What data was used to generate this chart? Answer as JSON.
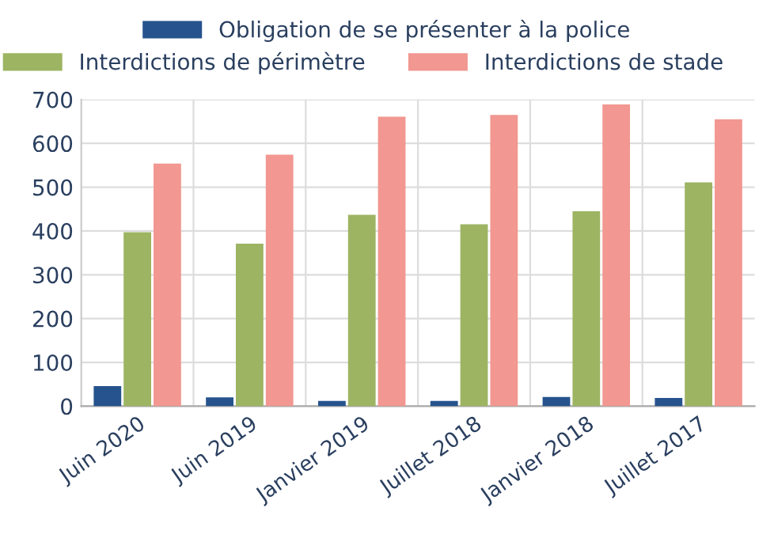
{
  "chart_data": {
    "type": "bar",
    "categories": [
      "Juin 2020",
      "Juin 2019",
      "Janvier 2019",
      "Juillet 2018",
      "Janvier 2018",
      "Juillet 2017"
    ],
    "series": [
      {
        "name": "Obligation de se présenter à la police",
        "color": "#26538d",
        "values": [
          46,
          20,
          12,
          12,
          21,
          19
        ]
      },
      {
        "name": "Interdictions de périmètre",
        "color": "#9db462",
        "values": [
          397,
          371,
          437,
          415,
          445,
          511
        ]
      },
      {
        "name": "Interdictions de stade",
        "color": "#f29791",
        "values": [
          554,
          574,
          661,
          665,
          689,
          655
        ]
      }
    ],
    "ylim": [
      0,
      700
    ],
    "yticks": [
      0,
      100,
      200,
      300,
      400,
      500,
      600,
      700
    ],
    "grid": true,
    "legend": "top"
  }
}
